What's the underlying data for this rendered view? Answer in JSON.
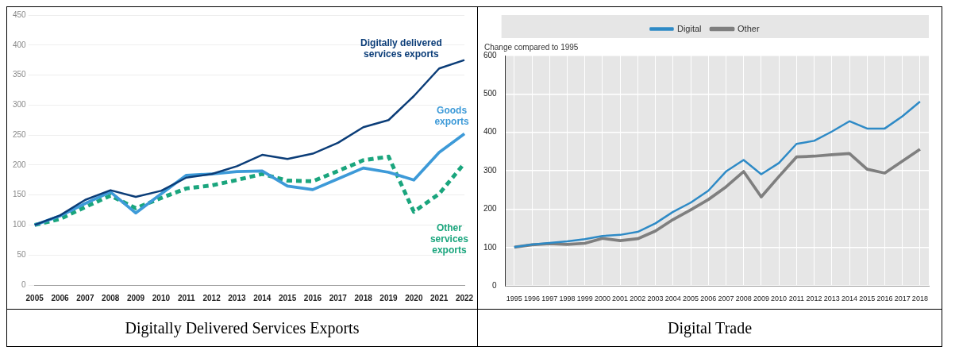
{
  "chart_data": [
    {
      "type": "line",
      "title": "Digitally Delivered Services Exports",
      "categories": [
        "2005",
        "2006",
        "2007",
        "2008",
        "2009",
        "2010",
        "2011",
        "2012",
        "2013",
        "2014",
        "2015",
        "2016",
        "2017",
        "2018",
        "2019",
        "2020",
        "2021",
        "2022"
      ],
      "ylim": [
        0,
        450
      ],
      "yticks": [
        0,
        50,
        100,
        150,
        200,
        250,
        300,
        350,
        400,
        450
      ],
      "grid": "y",
      "legend": false,
      "marker": "none",
      "series": [
        {
          "name": "Digitally delivered services exports",
          "color": "#0b3d78",
          "line_style": "solid",
          "values": [
            100,
            116,
            142,
            158,
            147,
            157,
            179,
            185,
            198,
            217,
            210,
            219,
            237,
            263,
            275,
            315,
            361,
            375
          ]
        },
        {
          "name": "Goods exports",
          "color": "#3d9ad8",
          "line_style": "solid",
          "values": [
            100,
            115,
            136,
            155,
            120,
            152,
            183,
            185,
            189,
            190,
            165,
            159,
            177,
            195,
            188,
            175,
            221,
            252
          ]
        },
        {
          "name": "Other services exports",
          "color": "#1aa57d",
          "line_style": "dashed",
          "values": [
            100,
            110,
            130,
            149,
            128,
            145,
            161,
            166,
            175,
            185,
            174,
            173,
            190,
            208,
            214,
            122,
            152,
            203
          ]
        }
      ]
    },
    {
      "type": "line",
      "title": "Digital Trade",
      "ylabel": "Change compared to 1995",
      "categories": [
        "1995",
        "1996",
        "1997",
        "1998",
        "1999",
        "2000",
        "2001",
        "2002",
        "2003",
        "2004",
        "2005",
        "2006",
        "2007",
        "2008",
        "2009",
        "2010",
        "2011",
        "2012",
        "2013",
        "2014",
        "2015",
        "2016",
        "2017",
        "2018"
      ],
      "ylim": [
        0,
        600
      ],
      "yticks": [
        0,
        100,
        200,
        300,
        400,
        500,
        600
      ],
      "grid": true,
      "legend": "top",
      "marker": "none",
      "series": [
        {
          "name": "Digital",
          "color": "#2e8ac6",
          "line_style": "solid",
          "values": [
            101,
            108,
            112,
            116,
            122,
            130,
            133,
            141,
            163,
            193,
            217,
            248,
            298,
            328,
            291,
            320,
            370,
            378,
            402,
            429,
            410,
            410,
            442,
            480
          ]
        },
        {
          "name": "Other",
          "color": "#7f7f7f",
          "line_style": "solid",
          "values": [
            101,
            107,
            110,
            108,
            111,
            124,
            118,
            123,
            143,
            173,
            198,
            225,
            258,
            298,
            232,
            285,
            336,
            338,
            342,
            345,
            304,
            294,
            325,
            356
          ]
        }
      ]
    }
  ]
}
